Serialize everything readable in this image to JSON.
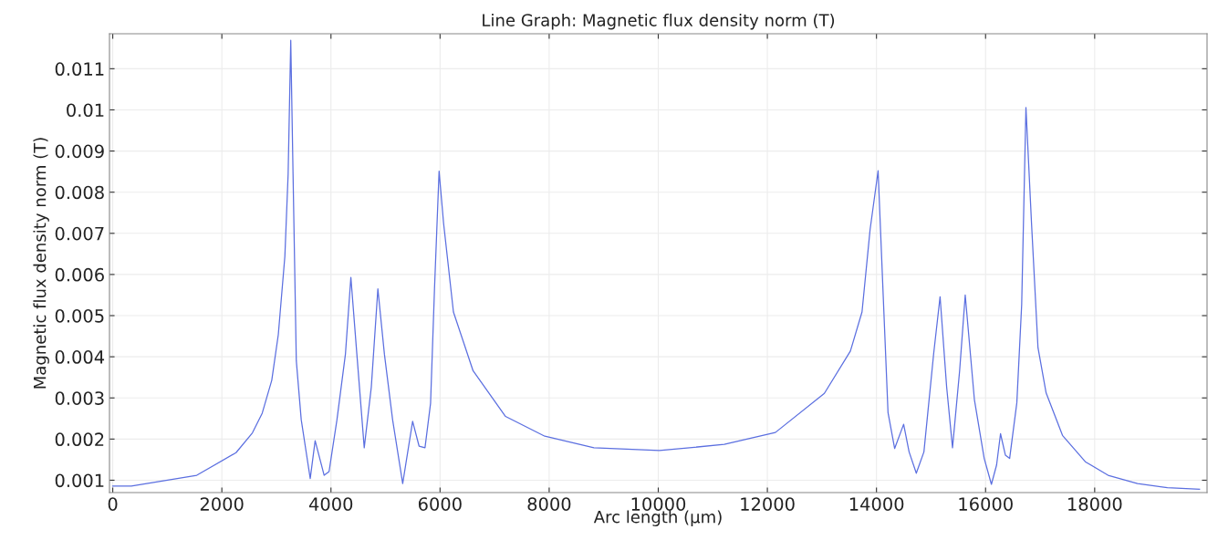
{
  "chart_data": {
    "type": "line",
    "title": "Line Graph: Magnetic flux density norm (T)",
    "xlabel": "Arc length (µm)",
    "ylabel": "Magnetic flux density norm (T)",
    "xlim": [
      -60,
      20060
    ],
    "ylim": [
      0.0007,
      0.01185
    ],
    "xticks": [
      0,
      2000,
      4000,
      6000,
      8000,
      10000,
      12000,
      14000,
      16000,
      18000
    ],
    "yticks": [
      0.001,
      0.002,
      0.003,
      0.004,
      0.005,
      0.006,
      0.007,
      0.008,
      0.009,
      0.01,
      0.011
    ],
    "grid": true,
    "legend": false,
    "line_style": "solid",
    "marker": "none",
    "series": [
      {
        "color": "#5b6fe0",
        "x": [
          0,
          340,
          1540,
          2260,
          2560,
          2740,
          2915,
          3035,
          3155,
          3215,
          3263,
          3305,
          3365,
          3455,
          3620,
          3710,
          3875,
          3965,
          4110,
          4265,
          4365,
          4475,
          4610,
          4740,
          4860,
          4980,
          5130,
          5315,
          5497,
          5615,
          5724,
          5826,
          5898,
          5982,
          6065,
          6245,
          6605,
          7200,
          7920,
          8820,
          10020,
          11210,
          12147,
          13045,
          13522,
          13735,
          13883,
          14030,
          14123,
          14212,
          14333,
          14498,
          14598,
          14730,
          14870,
          15048,
          15166,
          15286,
          15394,
          15525,
          15627,
          15795,
          15975,
          16107,
          16202,
          16274,
          16363,
          16441,
          16573,
          16662,
          16740,
          16842,
          16961,
          17110,
          17410,
          17828,
          18246,
          18785,
          19333,
          19922
        ],
        "values": [
          0.00086,
          0.00086,
          0.00112,
          0.00167,
          0.00215,
          0.00263,
          0.00343,
          0.00454,
          0.00644,
          0.00844,
          0.01169,
          0.00844,
          0.0039,
          0.00247,
          0.00104,
          0.00196,
          0.00112,
          0.00121,
          0.00247,
          0.00406,
          0.00593,
          0.00406,
          0.00179,
          0.00327,
          0.00565,
          0.00406,
          0.00247,
          0.00092,
          0.00243,
          0.00183,
          0.00179,
          0.00287,
          0.00565,
          0.00851,
          0.00724,
          0.00509,
          0.00366,
          0.00255,
          0.00207,
          0.00179,
          0.00172,
          0.00187,
          0.00216,
          0.00311,
          0.00414,
          0.00509,
          0.00709,
          0.00852,
          0.0055,
          0.00264,
          0.00177,
          0.00236,
          0.00169,
          0.00117,
          0.00169,
          0.00407,
          0.00546,
          0.00327,
          0.00179,
          0.00367,
          0.0055,
          0.00296,
          0.00153,
          0.0009,
          0.00137,
          0.00213,
          0.00161,
          0.00153,
          0.00288,
          0.00527,
          0.01006,
          0.00725,
          0.00422,
          0.00312,
          0.00209,
          0.00145,
          0.00112,
          0.00092,
          0.00082,
          0.00078
        ]
      }
    ]
  }
}
